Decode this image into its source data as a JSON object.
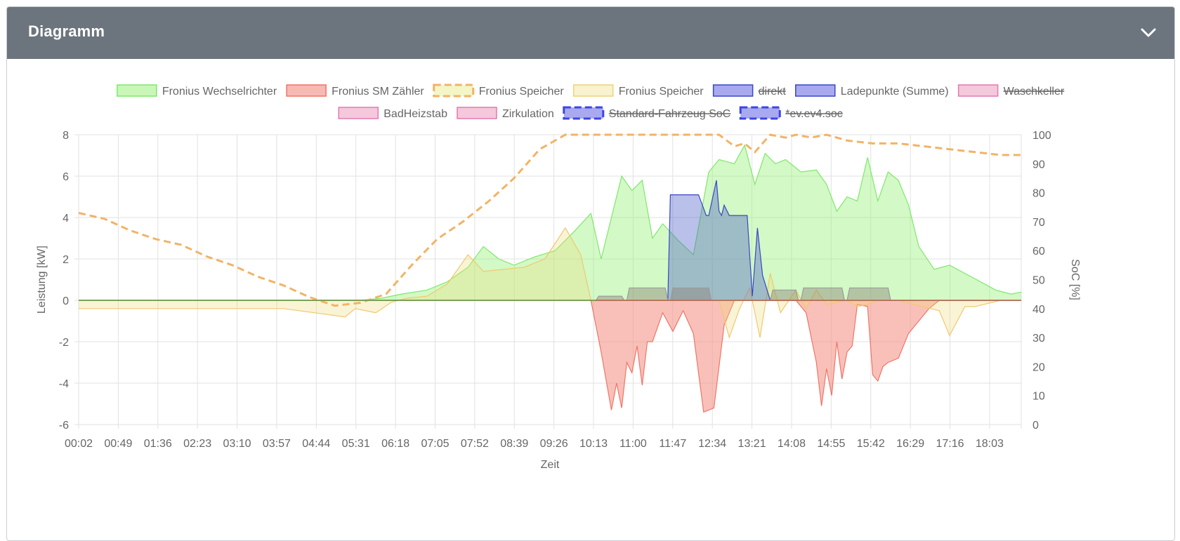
{
  "card": {
    "title": "Diagramm"
  },
  "chart_data": {
    "type": "area",
    "xlabel": "Zeit",
    "ylabel_left": "Leistung [kW]",
    "ylabel_right": "SoC [%]",
    "y_left_range": [
      -6,
      8
    ],
    "y_right_range": [
      0,
      100
    ],
    "y_left_ticks": [
      "8",
      "6",
      "4",
      "2",
      "0",
      "-2",
      "-4",
      "-6"
    ],
    "y_right_ticks": [
      "100",
      "90",
      "80",
      "70",
      "60",
      "50",
      "40",
      "30",
      "20",
      "10",
      "0"
    ],
    "x_ticks": [
      "00:02",
      "00:49",
      "01:36",
      "02:23",
      "03:10",
      "03:57",
      "04:44",
      "05:31",
      "06:18",
      "07:05",
      "07:52",
      "08:39",
      "09:26",
      "10:13",
      "11:00",
      "11:47",
      "12:34",
      "13:21",
      "14:08",
      "14:55",
      "15:42",
      "16:29",
      "17:16",
      "18:03"
    ],
    "grid": true,
    "legend_position": "top",
    "legend": [
      {
        "label": "Fronius Wechselrichter",
        "fill": "#c9f7b8",
        "stroke": "#7ee86b",
        "dashed": false,
        "hidden": false
      },
      {
        "label": "Fronius SM Zähler",
        "fill": "#f8b8b4",
        "stroke": "#f07565",
        "dashed": false,
        "hidden": false
      },
      {
        "label": "Fronius Speicher",
        "fill": "#f3f7c7",
        "stroke": "#f2b366",
        "dashed": true,
        "hidden": false
      },
      {
        "label": "Fronius Speicher",
        "fill": "#f8f3cc",
        "stroke": "#f0d07a",
        "dashed": false,
        "hidden": false
      },
      {
        "label": "direkt",
        "fill": "#a9a9f0",
        "stroke": "#3a46c9",
        "dashed": false,
        "hidden": true
      },
      {
        "label": "Ladepunkte (Summe)",
        "fill": "#a9a9f0",
        "stroke": "#3a46c9",
        "dashed": false,
        "hidden": false
      },
      {
        "label": "Waschkeller",
        "fill": "#f5c8dc",
        "stroke": "#e07ab0",
        "dashed": false,
        "hidden": true
      },
      {
        "label": "BadHeizstab",
        "fill": "#f5c8dc",
        "stroke": "#e07ab0",
        "dashed": false,
        "hidden": false
      },
      {
        "label": "Zirkulation",
        "fill": "#f5c8dc",
        "stroke": "#e07ab0",
        "dashed": false,
        "hidden": false
      },
      {
        "label": "Standard-Fahrzeug SoC",
        "fill": "#a9a9f0",
        "stroke": "#3a46e8",
        "dashed": true,
        "hidden": true
      },
      {
        "label": "*ev.ev4.soc",
        "fill": "#a9a9f0",
        "stroke": "#3a46e8",
        "dashed": true,
        "hidden": true
      }
    ],
    "series": [
      {
        "name": "Fronius Wechselrichter",
        "axis": "left",
        "fill": "rgba(150,240,120,0.42)",
        "stroke": "#7ee86b",
        "x": [
          0,
          5.5,
          5.9,
          6.3,
          6.8,
          7.2,
          7.6,
          7.9,
          8.2,
          8.5,
          8.9,
          9.3,
          9.7,
          10.0,
          10.2,
          10.4,
          10.6,
          10.8,
          11.0,
          11.2,
          11.4,
          11.7,
          12.0,
          12.3,
          12.5,
          12.8,
          13.0,
          13.2,
          13.4,
          13.6,
          13.8,
          14.1,
          14.4,
          14.6,
          14.8,
          15.0,
          15.2,
          15.4,
          15.6,
          15.8,
          16.0,
          16.2,
          16.4,
          16.7,
          17.0,
          17.3,
          17.6,
          17.9,
          18.2,
          18.4
        ],
        "y": [
          0,
          0,
          0.1,
          0.3,
          0.5,
          0.9,
          1.6,
          2.6,
          2.0,
          1.7,
          2.1,
          2.4,
          3.4,
          4.2,
          2.0,
          4.0,
          6.0,
          5.3,
          5.8,
          3.0,
          3.7,
          2.9,
          2.2,
          6.2,
          6.8,
          6.6,
          7.5,
          5.6,
          7.1,
          6.6,
          6.8,
          6.2,
          6.3,
          5.6,
          4.3,
          5.0,
          4.8,
          6.9,
          4.8,
          6.2,
          5.8,
          4.6,
          2.6,
          1.5,
          1.7,
          1.3,
          0.9,
          0.5,
          0.3,
          0.4
        ]
      },
      {
        "name": "Fronius SM Zähler",
        "axis": "left",
        "fill": "rgba(245,150,140,0.6)",
        "stroke": "#f07565",
        "x": [
          0,
          10.0,
          10.2,
          10.4,
          10.5,
          10.6,
          10.7,
          10.8,
          10.9,
          11.0,
          11.1,
          11.2,
          11.4,
          11.6,
          11.8,
          12.0,
          12.2,
          12.4,
          12.6,
          12.8,
          13.0,
          13.2,
          13.4,
          13.6,
          13.8,
          14.0,
          14.2,
          14.4,
          14.5,
          14.6,
          14.7,
          14.8,
          14.9,
          15.0,
          15.1,
          15.2,
          15.4,
          15.5,
          15.6,
          15.7,
          15.8,
          16.0,
          16.2,
          16.4,
          16.6,
          16.8,
          17.0,
          17.2,
          18.4
        ],
        "y": [
          0,
          0,
          -2.5,
          -5.3,
          -4.0,
          -5.2,
          -3.0,
          -3.5,
          -2.2,
          -4.1,
          -2.0,
          -2.0,
          -0.6,
          -1.5,
          -0.5,
          -1.6,
          -5.4,
          -5.2,
          -1.2,
          0,
          0,
          0,
          0,
          0,
          0,
          0,
          -0.6,
          -3.0,
          -5.1,
          -3.3,
          -4.6,
          -2.0,
          -3.8,
          -2.5,
          -2.2,
          -0.2,
          -0.3,
          -3.6,
          -3.9,
          -3.2,
          -3.0,
          -2.8,
          -1.6,
          -1.0,
          -0.4,
          0,
          0,
          0,
          0
        ]
      },
      {
        "name": "Fronius Speicher",
        "axis": "left",
        "fill": "rgba(240,220,120,0.3)",
        "stroke": "#f0c870",
        "x": [
          0,
          2.0,
          4.0,
          5.2,
          5.4,
          5.8,
          6.1,
          6.4,
          6.8,
          7.2,
          7.6,
          7.9,
          8.3,
          8.7,
          9.1,
          9.5,
          9.8,
          10.0,
          10.1,
          10.2,
          12.5,
          12.7,
          12.9,
          13.1,
          13.3,
          13.5,
          13.7,
          14.0,
          14.2,
          14.4,
          14.6,
          15.0,
          15.2,
          15.4,
          15.6,
          15.8,
          16.0,
          16.3,
          16.8,
          17.0,
          17.3,
          17.5,
          18.0,
          18.4
        ],
        "y": [
          -0.4,
          -0.4,
          -0.4,
          -0.8,
          -0.4,
          -0.6,
          -0.1,
          0.1,
          0.2,
          0.8,
          2.2,
          1.4,
          1.5,
          1.6,
          2.0,
          3.5,
          2.2,
          0,
          0,
          0,
          0,
          -1.8,
          -0.4,
          0.6,
          -1.8,
          1.3,
          -0.6,
          0.5,
          -0.4,
          0.5,
          -0.2,
          0,
          -0.3,
          -0.2,
          0,
          0,
          0,
          -0.2,
          -0.5,
          -1.7,
          -0.3,
          -0.3,
          0,
          0
        ]
      },
      {
        "name": "Ladepunkte (Summe)",
        "axis": "left",
        "fill": "rgba(70,90,200,0.38)",
        "stroke": "#3a46c9",
        "x": [
          0,
          11.5,
          11.55,
          12.1,
          12.25,
          12.3,
          12.45,
          12.5,
          12.55,
          12.6,
          12.7,
          13.05,
          13.15,
          13.25,
          13.35,
          13.45,
          13.5,
          18.4
        ],
        "y": [
          0,
          0,
          5.1,
          5.1,
          4.1,
          4.1,
          5.8,
          4.3,
          4.1,
          4.6,
          4.1,
          4.1,
          0.2,
          3.5,
          1.2,
          0.4,
          0,
          0
        ]
      },
      {
        "name": "BadHeizstab",
        "axis": "left",
        "fill": "rgba(140,130,120,0.45)",
        "stroke": "#9b9b9b",
        "x": [
          10.1,
          10.15,
          10.6,
          10.65,
          10.7,
          10.75,
          11.45,
          11.5,
          11.55,
          11.6,
          12.3,
          12.35,
          13.5,
          13.55,
          14.0,
          14.05,
          14.1,
          14.15,
          14.9,
          14.95,
          15.0,
          15.05,
          15.8,
          15.85,
          16.3
        ],
        "y": [
          0,
          0.2,
          0.2,
          0,
          0,
          0.6,
          0.6,
          0,
          0,
          0.6,
          0.6,
          0,
          0,
          0.5,
          0.5,
          0,
          0,
          0.6,
          0.6,
          0,
          0,
          0.6,
          0.6,
          0,
          0
        ]
      },
      {
        "name": "Fronius Speicher",
        "axis": "right",
        "dashed": true,
        "stroke": "#f2b366",
        "x": [
          0,
          0.5,
          1.0,
          1.5,
          2.0,
          2.5,
          3.0,
          3.5,
          4.0,
          4.5,
          5.0,
          5.5,
          6.0,
          6.5,
          7.0,
          7.5,
          8.0,
          8.5,
          9.0,
          9.5,
          9.8,
          10.0,
          12.5,
          12.8,
          13.0,
          13.2,
          13.5,
          13.8,
          14.0,
          14.3,
          14.6,
          15.0,
          15.5,
          16.0,
          16.5,
          17.0,
          17.5,
          18.0,
          18.4
        ],
        "y": [
          73,
          71,
          67,
          64,
          62,
          58,
          55,
          51,
          48,
          44,
          41,
          42,
          45,
          55,
          64,
          70,
          77,
          85,
          95,
          100,
          100,
          100,
          100,
          96,
          97,
          94,
          100,
          99,
          100,
          99,
          100,
          98,
          97,
          97,
          96,
          95,
          94,
          93,
          93
        ]
      }
    ]
  }
}
